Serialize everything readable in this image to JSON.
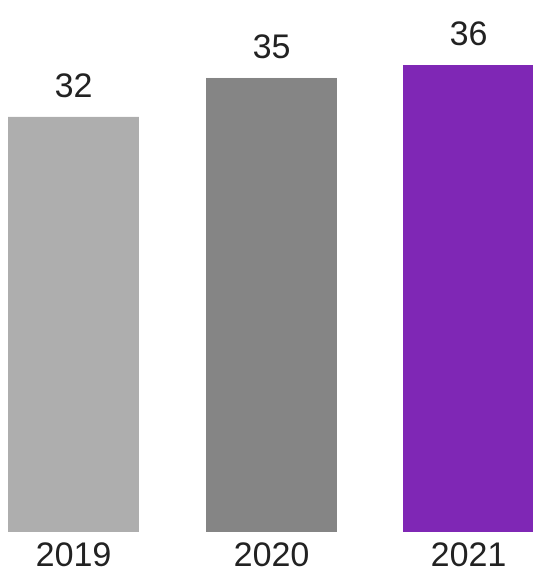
{
  "chart_data": {
    "type": "bar",
    "categories": [
      "2019",
      "2020",
      "2021"
    ],
    "values": [
      32,
      35,
      36
    ],
    "colors": [
      "#aeaeae",
      "#858585",
      "#7f27b5"
    ],
    "data_labels": [
      "32",
      "35",
      "36"
    ],
    "ylim": [
      0,
      36
    ],
    "grid": false,
    "legend": "none"
  }
}
